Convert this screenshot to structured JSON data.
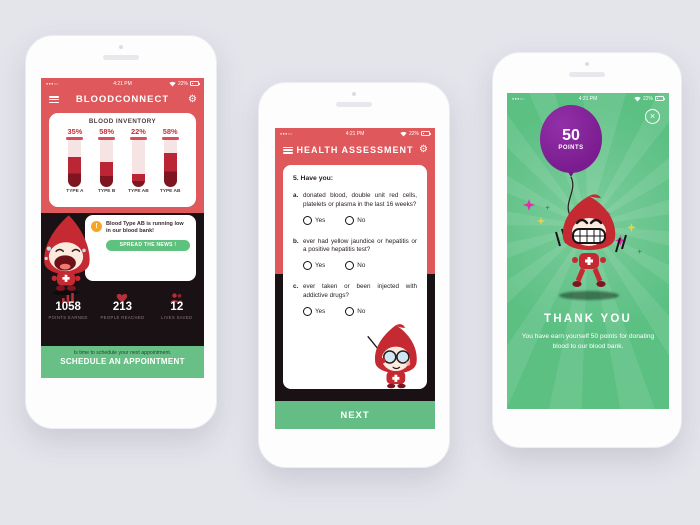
{
  "background_color": "#e4e4eb",
  "colors": {
    "app_red": "#df585c",
    "dark_panel": "#1a1115",
    "green": "#69c087",
    "success_green_bg": "#5cc083",
    "balloon_purple": "#7c1e91",
    "accent_magenta": "#e12bb0",
    "accent_yellow": "#f0d23f",
    "warning_orange": "#f5a623",
    "blood_red": "#b92433"
  },
  "icons": {
    "menu": "hamburger-bars",
    "settings": "⚙",
    "close": "×",
    "warning": "!",
    "signal_dots": "●●●○○"
  },
  "left_phone": {
    "status": {
      "time": "4:21 PM",
      "battery_percent": "22%"
    },
    "title": "BLOODCONNECT",
    "inventory": {
      "heading": "BLOOD INVENTORY",
      "tubes": [
        {
          "percent": "35%",
          "label": "TYPE A",
          "fill_pct": 62
        },
        {
          "percent": "58%",
          "label": "TYPE B",
          "fill_pct": 52
        },
        {
          "percent": "22%",
          "label": "TYPE AB",
          "fill_pct": 27
        },
        {
          "percent": "58%",
          "label": "TYPE AB",
          "fill_pct": 72
        }
      ]
    },
    "alert": {
      "message": "Blood Type AB is running low in our blood bank!",
      "action_label": "SPREAD THE NEWS !"
    },
    "stats": [
      {
        "icon": "bar-chart",
        "value": "1058",
        "label": "POINTS EARNED"
      },
      {
        "icon": "heart",
        "value": "213",
        "label": "PEOPLE REACHED"
      },
      {
        "icon": "people",
        "value": "12",
        "label": "LIVES SAVED"
      }
    ],
    "schedule": {
      "note": "Is time to schedule your next appointment.",
      "action_label": "SCHEDULE AN APPOINTMENT"
    }
  },
  "middle_phone": {
    "status": {
      "time": "4:21 PM",
      "battery_percent": "22%"
    },
    "title": "HEALTH ASSESSMENT",
    "form": {
      "intro": "5. Have you:",
      "questions": [
        {
          "letter": "a.",
          "text": "donated blood, double unit red cells, platelets or plasma in the last 16 weeks?",
          "options": [
            "Yes",
            "No"
          ]
        },
        {
          "letter": "b.",
          "text": "ever had yellow jaundice or hepatitis or a positive hepatitis test?",
          "options": [
            "Yes",
            "No"
          ]
        },
        {
          "letter": "c.",
          "text": "ever taken or been injected with addictive drugs?",
          "options": [
            "Yes",
            "No"
          ]
        }
      ]
    },
    "next_label": "NEXT"
  },
  "right_phone": {
    "status": {
      "time": "4:21 PM",
      "battery_percent": "22%"
    },
    "balloon": {
      "value": "50",
      "unit": "POINTS"
    },
    "message": {
      "title": "THANK YOU",
      "body": "You have earn yourself 50 points for donating blood to our  blood bank."
    }
  }
}
